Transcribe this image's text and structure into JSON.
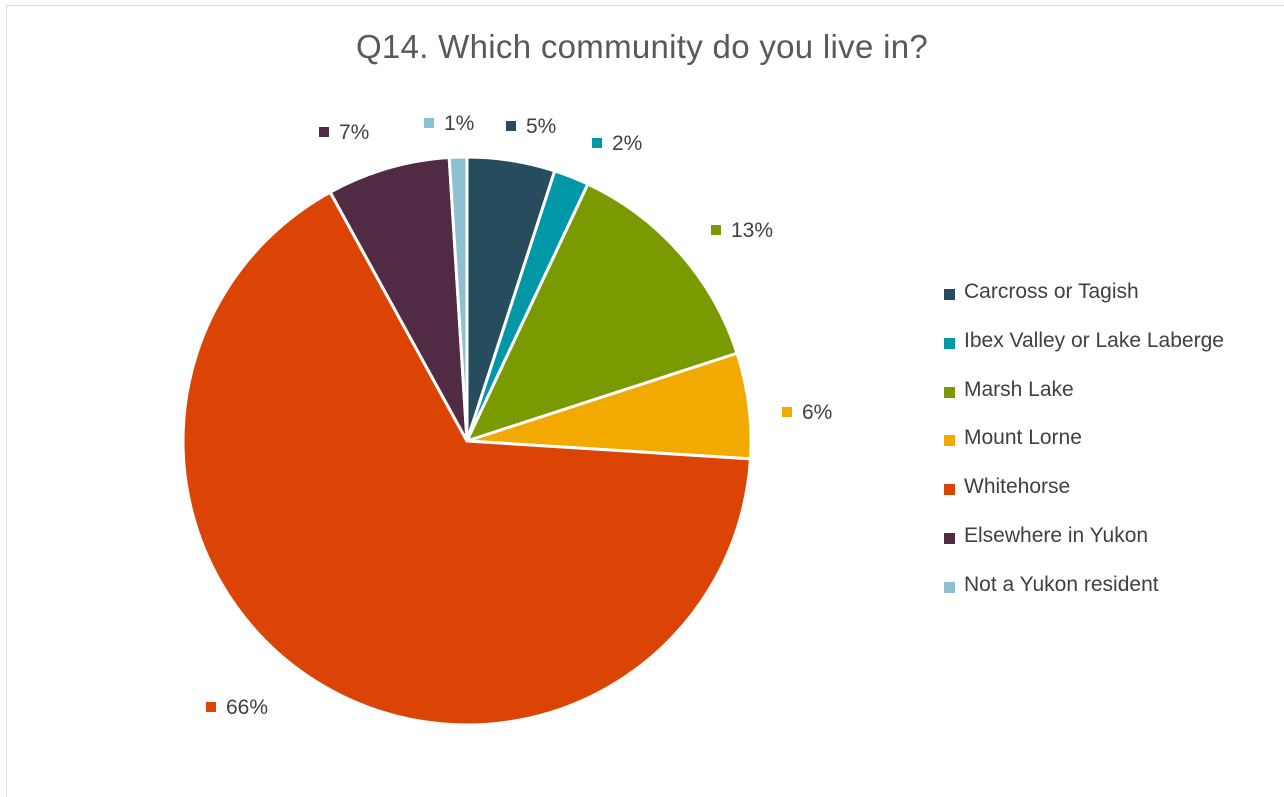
{
  "chart_data": {
    "type": "pie",
    "title": "Q14. Which community do you live in?",
    "slices": [
      {
        "label": "Carcross or Tagish",
        "value": 5,
        "value_label": "5%",
        "color": "#264c5e"
      },
      {
        "label": "Ibex Valley or Lake Laberge",
        "value": 2,
        "value_label": "2%",
        "color": "#0097a7"
      },
      {
        "label": "Marsh Lake",
        "value": 13,
        "value_label": "13%",
        "color": "#7a9a01"
      },
      {
        "label": "Mount Lorne",
        "value": 6,
        "value_label": "6%",
        "color": "#f2a900"
      },
      {
        "label": "Whitehorse",
        "value": 66,
        "value_label": "66%",
        "color": "#dc4405"
      },
      {
        "label": "Elsewhere in Yukon",
        "value": 7,
        "value_label": "7%",
        "color": "#512a44"
      },
      {
        "label": "Not a Yukon resident",
        "value": 1,
        "value_label": "1%",
        "color": "#8dc0d1"
      }
    ],
    "legend_position": "right",
    "start_angle": "top",
    "direction": "clockwise"
  }
}
